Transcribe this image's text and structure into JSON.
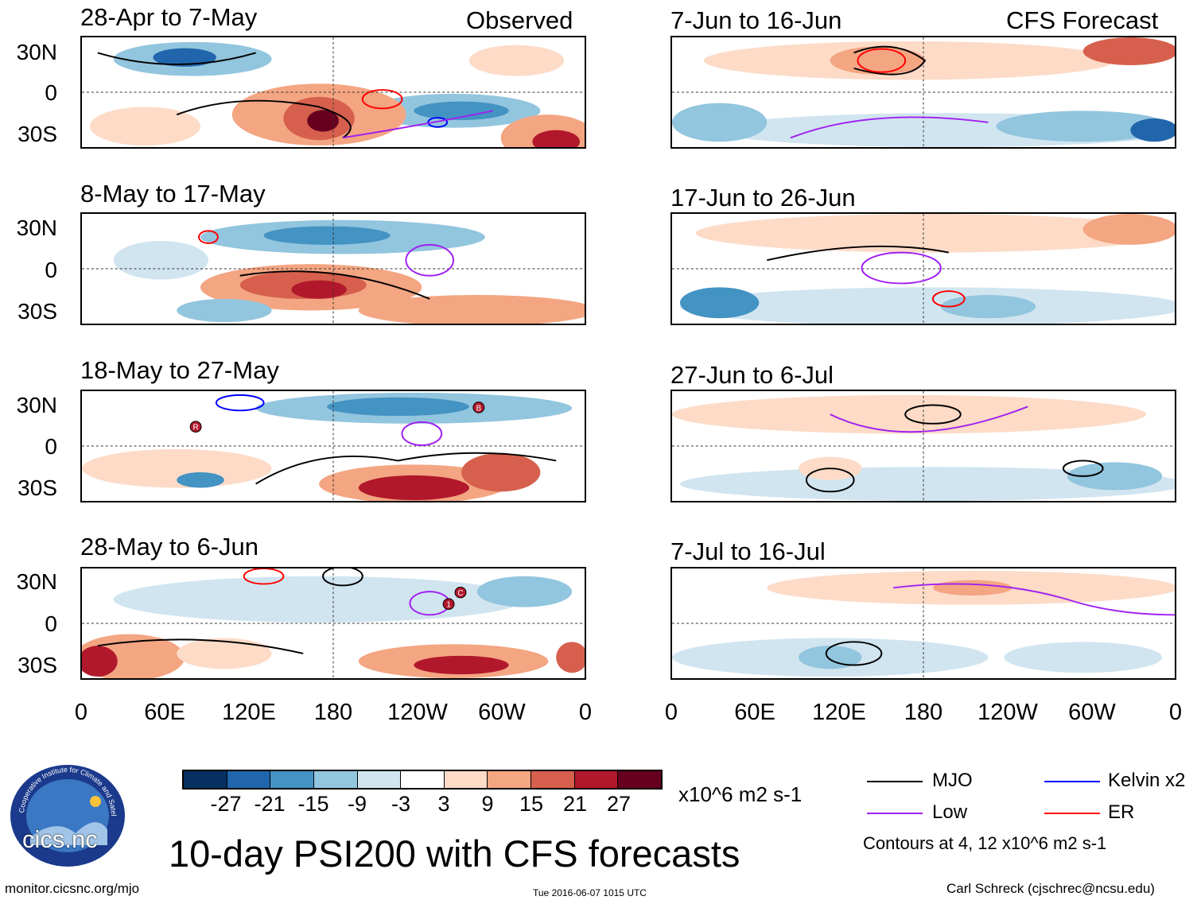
{
  "title": "10-day PSI200 with CFS forecasts",
  "header": {
    "observed_label": "Observed",
    "forecast_label": "CFS Forecast"
  },
  "units": "x10^6 m2 s-1",
  "lat_labels": [
    "30N",
    "0",
    "30S"
  ],
  "lon_labels": [
    "0",
    "60E",
    "120E",
    "180",
    "120W",
    "60W",
    "0"
  ],
  "panels": {
    "observed": [
      {
        "period": "28-Apr to 7-May"
      },
      {
        "period": "8-May to 17-May"
      },
      {
        "period": "18-May to 27-May"
      },
      {
        "period": "28-May to 6-Jun"
      }
    ],
    "forecast": [
      {
        "period": "7-Jun to 16-Jun"
      },
      {
        "period": "17-Jun to 26-Jun"
      },
      {
        "period": "27-Jun to 6-Jul"
      },
      {
        "period": "7-Jul to 16-Jul"
      }
    ]
  },
  "colorbar": {
    "ticks": [
      "-27",
      "-21",
      "-15",
      "-9",
      "-3",
      "3",
      "9",
      "15",
      "21",
      "27"
    ],
    "colors": [
      "#053061",
      "#2166ac",
      "#4393c3",
      "#92c5de",
      "#d1e5f0",
      "#ffffff",
      "#fddbc7",
      "#f4a582",
      "#d6604d",
      "#b2182b",
      "#67001f"
    ]
  },
  "legend": {
    "items": [
      {
        "label": "MJO",
        "color": "#000000"
      },
      {
        "label": "Kelvin x2",
        "color": "#0000ff"
      },
      {
        "label": "Low",
        "color": "#a020f0"
      },
      {
        "label": "ER",
        "color": "#ff0000"
      }
    ],
    "contours_note": "Contours at 4, 12 x10^6 m2 s-1"
  },
  "logo": {
    "text": "cics.nc",
    "ring_text": "Cooperative Institute for Climate and Satellites"
  },
  "footer": {
    "url": "monitor.cicsnc.org/mjo",
    "timestamp": "Tue 2016-06-07 1015 UTC",
    "author": "Carl Schreck (cjschrec@ncsu.edu)"
  },
  "markers": {
    "panel3": [
      "R",
      "B"
    ],
    "panel4": [
      "1",
      "C"
    ]
  }
}
